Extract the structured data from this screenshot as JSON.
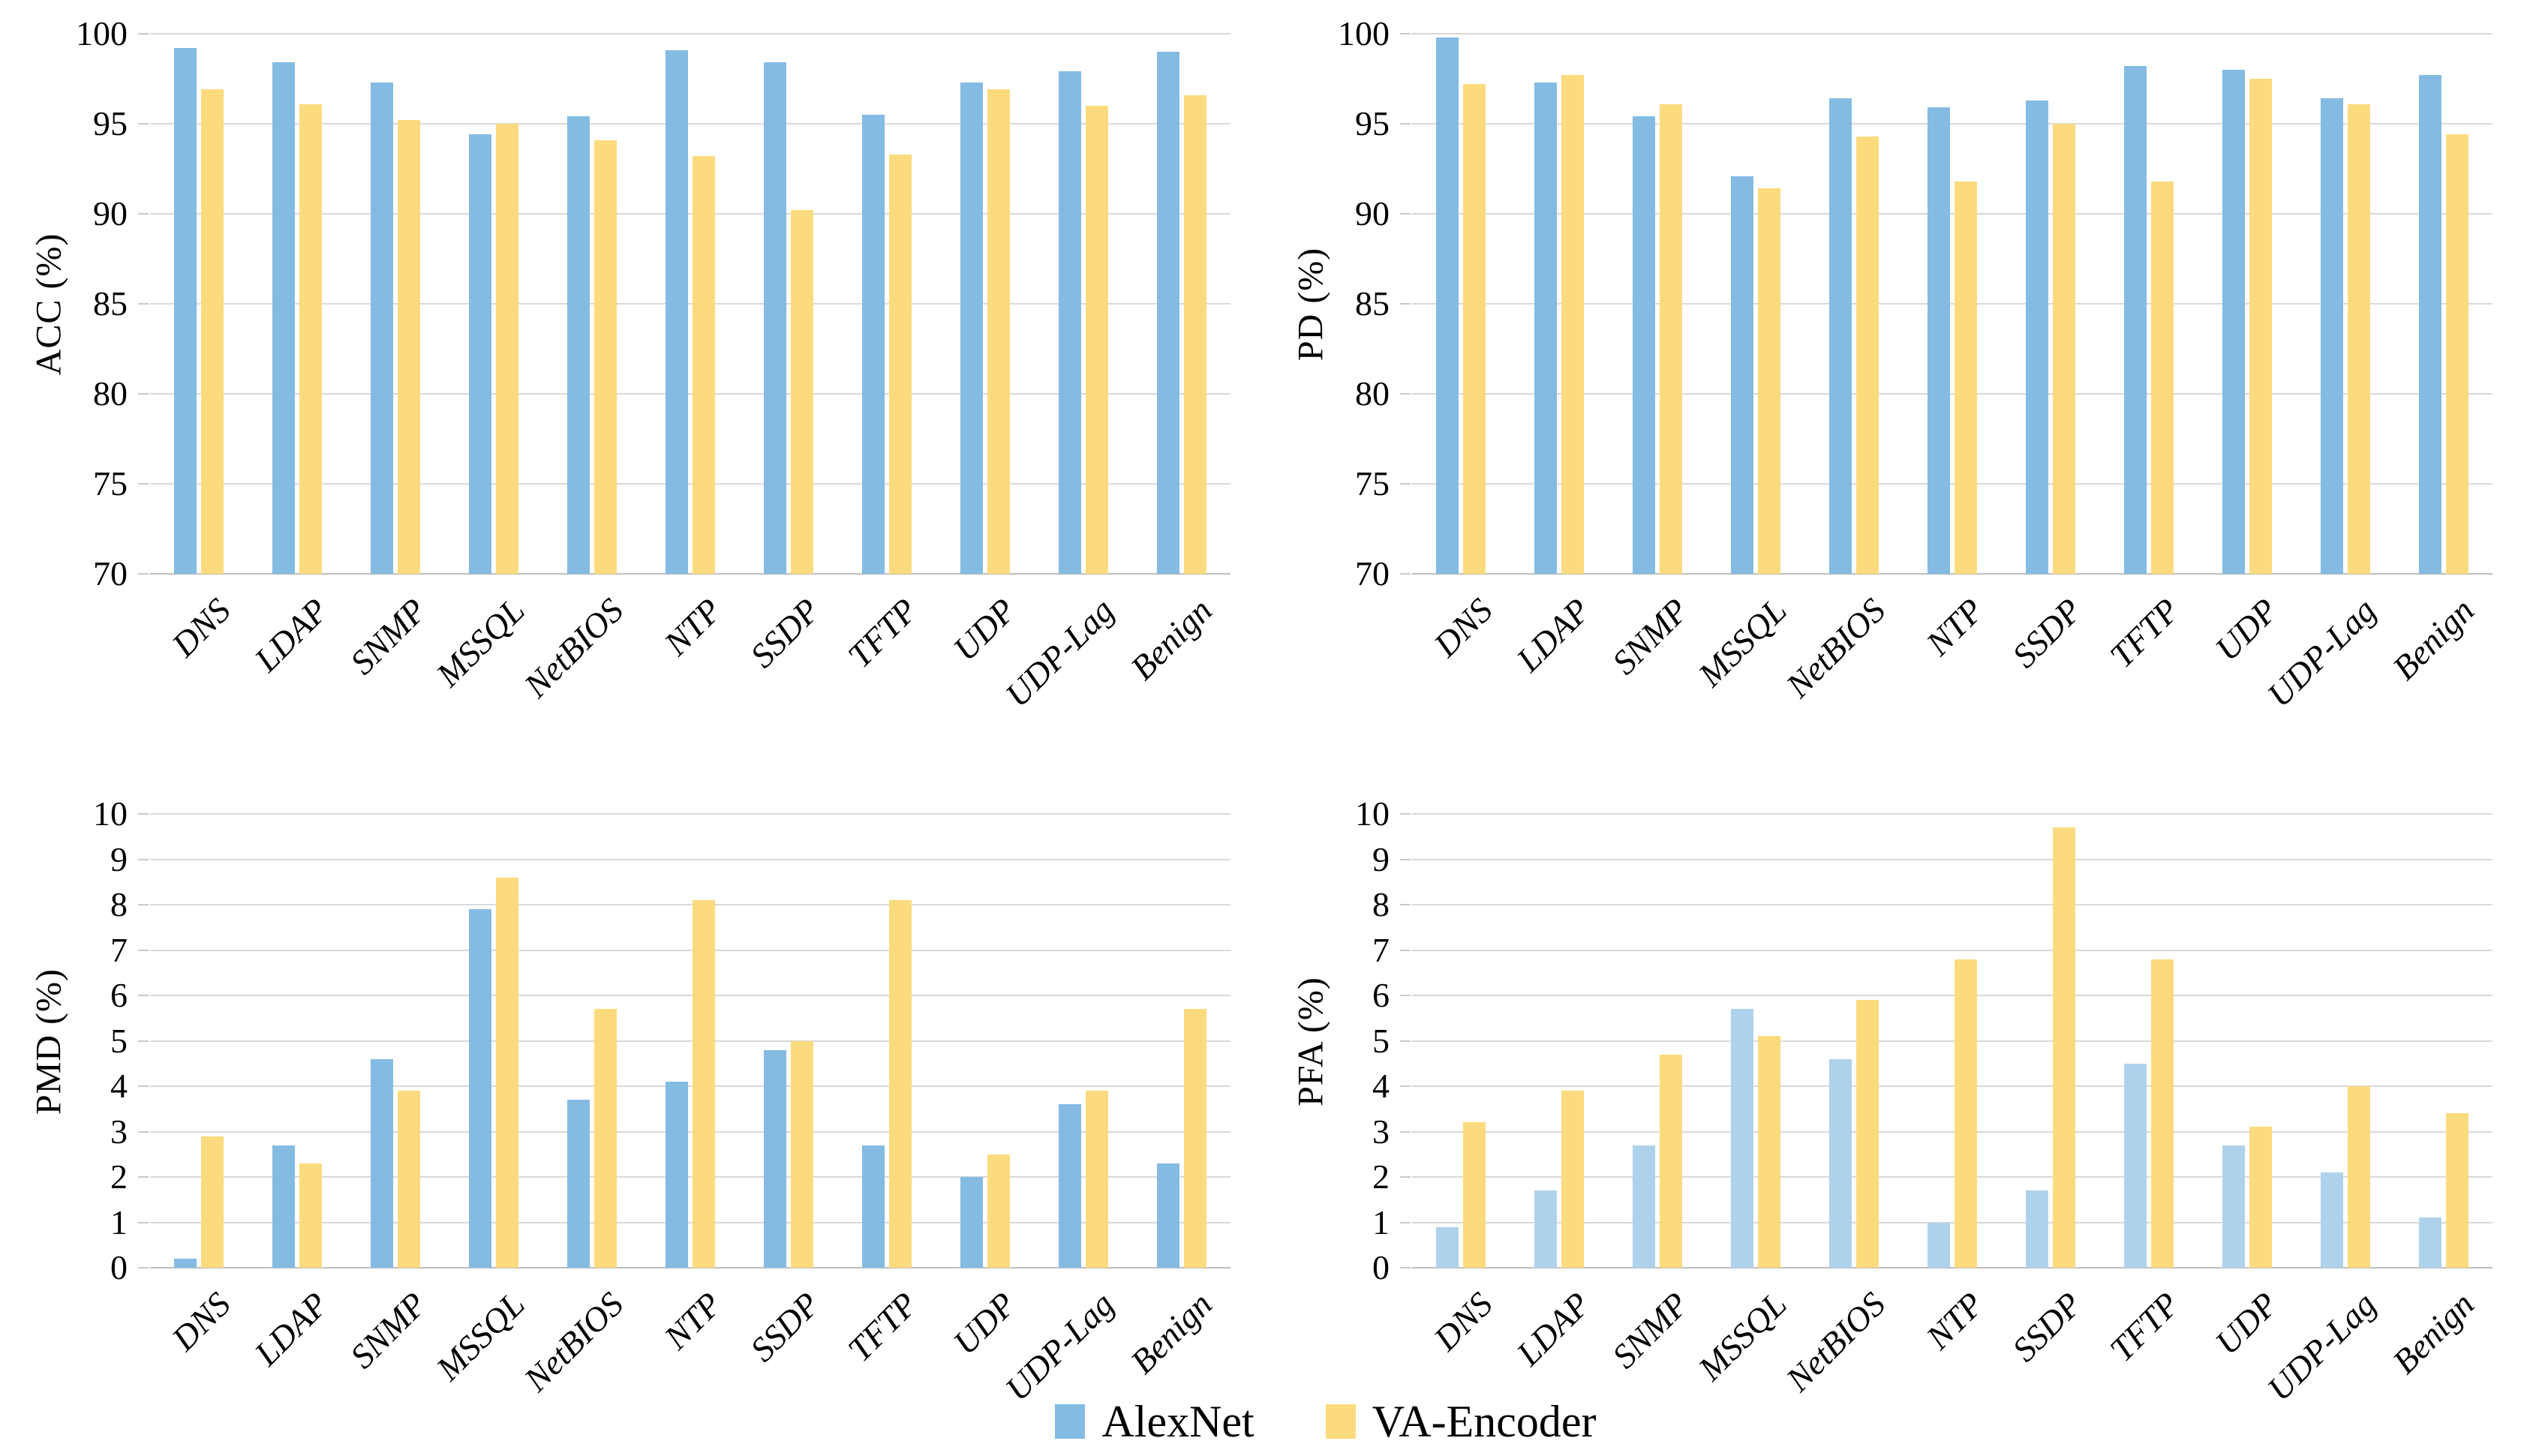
{
  "figure": {
    "background": "#ffffff",
    "grid": true,
    "colors": {
      "alexnet_blue": "#84bbe3",
      "alexnet_blue_light": "#afd2ec",
      "va_encoder_yellow": "#fcdb7e",
      "gridline": "#d9d9d9",
      "axis_baseline": "#bfbfbf"
    }
  },
  "legend": {
    "position": "bottom-center",
    "items": [
      {
        "label": "AlexNet",
        "color": "#84bbe3"
      },
      {
        "label": "VA-Encoder",
        "color": "#fcdb7e"
      }
    ]
  },
  "chart_data": [
    {
      "type": "bar",
      "title": "",
      "xlabel": "",
      "ylabel": "ACC (%)",
      "ylim": [
        70,
        100
      ],
      "yticks": [
        70,
        75,
        80,
        85,
        90,
        95,
        100
      ],
      "grid": true,
      "legend_position": "bottom-center",
      "categories": [
        "DNS",
        "LDAP",
        "SNMP",
        "MSSQL",
        "NetBIOS",
        "NTP",
        "SSDP",
        "TFTP",
        "UDP",
        "UDP-Lag",
        "Benign"
      ],
      "series": [
        {
          "name": "AlexNet",
          "color": "#84bbe3",
          "values": [
            99.2,
            98.4,
            97.3,
            94.4,
            95.4,
            99.1,
            98.4,
            95.5,
            97.3,
            97.9,
            99.0
          ]
        },
        {
          "name": "VA-Encoder",
          "color": "#fcdb7e",
          "values": [
            96.9,
            96.1,
            95.2,
            95.0,
            94.1,
            93.2,
            90.2,
            93.3,
            96.9,
            96.0,
            96.6
          ]
        }
      ]
    },
    {
      "type": "bar",
      "title": "",
      "xlabel": "",
      "ylabel": "PD (%)",
      "ylim": [
        70,
        100
      ],
      "yticks": [
        70,
        75,
        80,
        85,
        90,
        95,
        100
      ],
      "grid": true,
      "legend_position": "bottom-center",
      "categories": [
        "DNS",
        "LDAP",
        "SNMP",
        "MSSQL",
        "NetBIOS",
        "NTP",
        "SSDP",
        "TFTP",
        "UDP",
        "UDP-Lag",
        "Benign"
      ],
      "series": [
        {
          "name": "AlexNet",
          "color": "#84bbe3",
          "values": [
            99.8,
            97.3,
            95.4,
            92.1,
            96.4,
            95.9,
            96.3,
            98.2,
            98.0,
            96.4,
            97.7
          ]
        },
        {
          "name": "VA-Encoder",
          "color": "#fcdb7e",
          "values": [
            97.2,
            97.7,
            96.1,
            91.4,
            94.3,
            91.8,
            95.0,
            91.8,
            97.5,
            96.1,
            94.4
          ]
        }
      ]
    },
    {
      "type": "bar",
      "title": "",
      "xlabel": "",
      "ylabel": "PMD (%)",
      "ylim": [
        0,
        10
      ],
      "yticks": [
        0,
        1,
        2,
        3,
        4,
        5,
        6,
        7,
        8,
        9,
        10
      ],
      "grid": true,
      "legend_position": "bottom-center",
      "categories": [
        "DNS",
        "LDAP",
        "SNMP",
        "MSSQL",
        "NetBIOS",
        "NTP",
        "SSDP",
        "TFTP",
        "UDP",
        "UDP-Lag",
        "Benign"
      ],
      "series": [
        {
          "name": "AlexNet",
          "color": "#84bbe3",
          "values": [
            0.2,
            2.7,
            4.6,
            7.9,
            3.7,
            4.1,
            4.8,
            2.7,
            2.0,
            3.6,
            2.3
          ]
        },
        {
          "name": "VA-Encoder",
          "color": "#fcdb7e",
          "values": [
            2.9,
            2.3,
            3.9,
            8.6,
            5.7,
            8.1,
            5.0,
            8.1,
            2.5,
            3.9,
            5.7
          ]
        }
      ]
    },
    {
      "type": "bar",
      "title": "",
      "xlabel": "",
      "ylabel": "PFA (%)",
      "ylim": [
        0,
        10
      ],
      "yticks": [
        0,
        1,
        2,
        3,
        4,
        5,
        6,
        7,
        8,
        9,
        10
      ],
      "grid": true,
      "legend_position": "bottom-center",
      "categories": [
        "DNS",
        "LDAP",
        "SNMP",
        "MSSQL",
        "NetBIOS",
        "NTP",
        "SSDP",
        "TFTP",
        "UDP",
        "UDP-Lag",
        "Benign"
      ],
      "series": [
        {
          "name": "AlexNet",
          "color": "#afd2ec",
          "values": [
            0.9,
            1.7,
            2.7,
            5.7,
            4.6,
            1.0,
            1.7,
            4.5,
            2.7,
            2.1,
            1.1
          ]
        },
        {
          "name": "VA-Encoder",
          "color": "#fcdb7e",
          "values": [
            3.2,
            3.9,
            4.7,
            5.1,
            5.9,
            6.8,
            9.7,
            6.8,
            3.1,
            4.0,
            3.4
          ]
        }
      ]
    }
  ]
}
